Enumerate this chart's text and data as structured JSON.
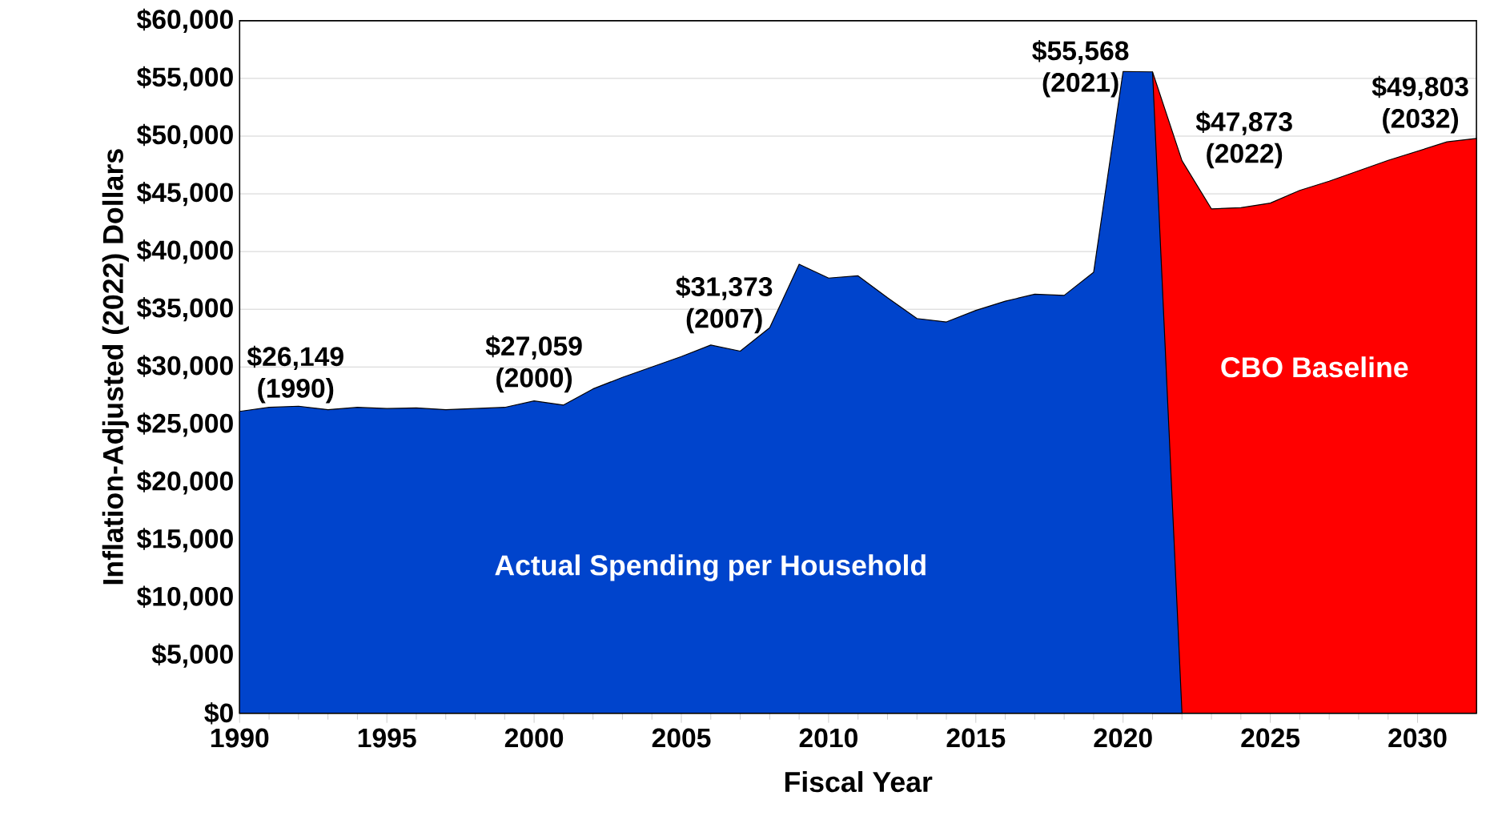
{
  "chart_data": {
    "type": "area",
    "xlabel": "Fiscal Year",
    "ylabel": "Inflation-Adjusted (2022) Dollars",
    "xlim": [
      1990,
      2032
    ],
    "xticks": [
      1990,
      1995,
      2000,
      2005,
      2010,
      2015,
      2020,
      2025,
      2030
    ],
    "ylim": [
      0,
      60000
    ],
    "yticks": [
      {
        "value": 0,
        "label": "$0"
      },
      {
        "value": 5000,
        "label": "$5,000"
      },
      {
        "value": 10000,
        "label": "$10,000"
      },
      {
        "value": 15000,
        "label": "$15,000"
      },
      {
        "value": 20000,
        "label": "$20,000"
      },
      {
        "value": 25000,
        "label": "$25,000"
      },
      {
        "value": 30000,
        "label": "$30,000"
      },
      {
        "value": 35000,
        "label": "$35,000"
      },
      {
        "value": 40000,
        "label": "$40,000"
      },
      {
        "value": 45000,
        "label": "$45,000"
      },
      {
        "value": 50000,
        "label": "$50,000"
      },
      {
        "value": 55000,
        "label": "$55,000"
      },
      {
        "value": 60000,
        "label": "$60,000"
      }
    ],
    "grid": "y",
    "series": [
      {
        "name": "Actual Spending per Household",
        "color": "#0044cc",
        "x": [
          1990,
          1991,
          1992,
          1993,
          1994,
          1995,
          1996,
          1997,
          1998,
          1999,
          2000,
          2001,
          2002,
          2003,
          2004,
          2005,
          2006,
          2007,
          2008,
          2009,
          2010,
          2011,
          2012,
          2013,
          2014,
          2015,
          2016,
          2017,
          2018,
          2019,
          2020,
          2021,
          2022
        ],
        "values": [
          26149,
          26500,
          26600,
          26300,
          26500,
          26400,
          26450,
          26300,
          26400,
          26500,
          27059,
          26700,
          28100,
          29100,
          30000,
          30900,
          31900,
          31373,
          33400,
          38900,
          37700,
          37900,
          36000,
          34200,
          33900,
          34900,
          35700,
          36300,
          36200,
          38200,
          55600,
          55568,
          0
        ]
      },
      {
        "name": "CBO Baseline",
        "color": "#ff0000",
        "x": [
          2021,
          2022,
          2023,
          2024,
          2025,
          2026,
          2027,
          2028,
          2029,
          2030,
          2031,
          2032
        ],
        "values": [
          55568,
          47873,
          43700,
          43800,
          44200,
          45300,
          46100,
          47000,
          47900,
          48700,
          49500,
          49803
        ]
      }
    ],
    "annotations": [
      {
        "text": "$26,149 (1990)",
        "x": 1990,
        "y": 26149
      },
      {
        "text": "$27,059 (2000)",
        "x": 2000,
        "y": 27059
      },
      {
        "text": "$31,373 (2007)",
        "x": 2007,
        "y": 31373
      },
      {
        "text": "$55,568 (2021)",
        "x": 2021,
        "y": 55568
      },
      {
        "text": "$47,873 (2022)",
        "x": 2022,
        "y": 47873
      },
      {
        "text": "$49,803 (2032)",
        "x": 2032,
        "y": 49803
      }
    ]
  }
}
